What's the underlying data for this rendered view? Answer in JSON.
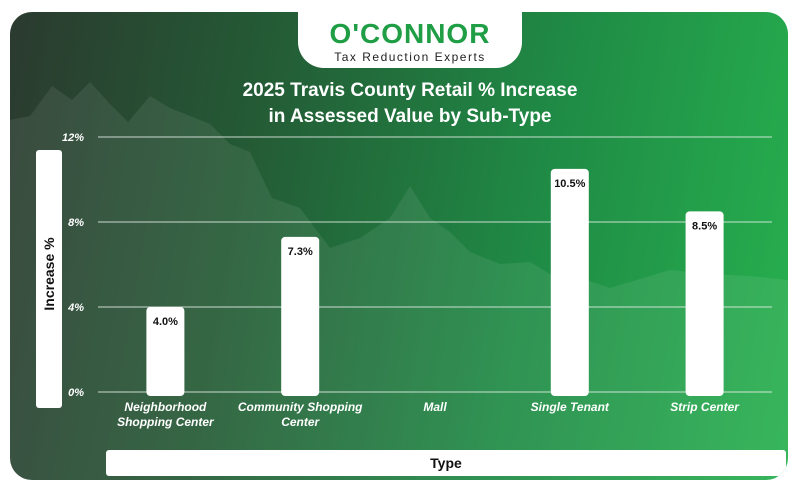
{
  "logo": {
    "name": "O'CONNOR",
    "tagline": "Tax Reduction Experts"
  },
  "chart_data": {
    "type": "bar",
    "title": "2025 Travis County Retail % Increase in Assessed Value by Sub-Type",
    "title_lines": [
      "2025 Travis County Retail % Increase",
      "in Assessed Value by Sub-Type"
    ],
    "xlabel": "Type",
    "ylabel": "Increase %",
    "categories": [
      [
        "Neighborhood",
        "Shopping Center"
      ],
      [
        "Community Shopping",
        "Center"
      ],
      [
        "Mall"
      ],
      [
        "Single Tenant"
      ],
      [
        "Strip Center"
      ]
    ],
    "values": [
      4.0,
      7.3,
      null,
      10.5,
      8.5
    ],
    "data_labels": [
      "4.0%",
      "7.3%",
      "",
      "10.5%",
      "8.5%"
    ],
    "ylim": [
      0,
      12
    ],
    "yticks": [
      0,
      4,
      8,
      12
    ],
    "ytick_labels": [
      "0%",
      "4%",
      "8%",
      "12%"
    ],
    "grid": true,
    "bar_color": "#ffffff",
    "grid_color": "#e8efe9"
  }
}
